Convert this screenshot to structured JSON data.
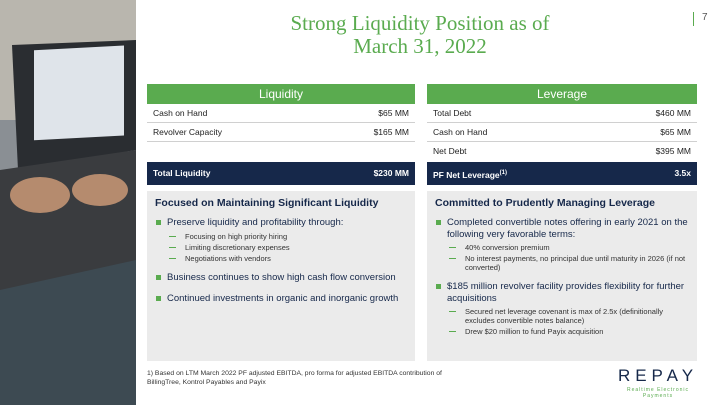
{
  "header": {
    "title_lines": [
      "Strong Liquidity Position as of",
      "March 31, 2022"
    ],
    "page_number": "7"
  },
  "liquidity": {
    "title": "Liquidity",
    "rows": [
      [
        "Cash on Hand",
        "$65 MM"
      ],
      [
        "Revolver Capacity",
        "$165 MM"
      ]
    ],
    "total": [
      "Total Liquidity",
      "$230 MM"
    ]
  },
  "leverage": {
    "title": "Leverage",
    "rows": [
      [
        "Total Debt",
        "$460 MM"
      ],
      [
        "Cash on Hand",
        "$65 MM"
      ],
      [
        "Net Debt",
        "$395 MM"
      ]
    ],
    "total": {
      "label": "PF Net Leverage",
      "footnote_ref": "(1)",
      "value": "3.5x"
    }
  },
  "left_box": {
    "title": "Focused on Maintaining Significant Liquidity",
    "bullets": [
      {
        "text": "Preserve liquidity and profitability through:",
        "sub": [
          "Focusing on high priority hiring",
          "Limiting discretionary expenses",
          "Negotiations with vendors"
        ]
      },
      {
        "text": "Business continues to show high cash flow conversion",
        "sub": []
      },
      {
        "text": "Continued investments in organic and inorganic growth",
        "sub": []
      }
    ]
  },
  "right_box": {
    "title": "Committed to Prudently Managing Leverage",
    "bullets": [
      {
        "text": "Completed convertible notes offering in early 2021 on the following very favorable terms:",
        "sub": [
          "40% conversion premium",
          "No interest payments, no principal due until maturity in 2026 (if not converted)"
        ]
      },
      {
        "text": "$185 million revolver facility provides flexibility for further acquisitions",
        "sub": [
          "Secured net leverage covenant is max of 2.5x (definitionally excludes convertible notes balance)",
          "Drew $20 million to fund Payix acquisition"
        ]
      }
    ]
  },
  "footnote": "1) Based on LTM March 2022 PF adjusted EBITDA, pro forma for adjusted EBITDA contribution of BillingTree, Kontrol Payables and Payix",
  "logo": {
    "name": "REPAY",
    "tagline": "Realtime Electronic Payments"
  }
}
